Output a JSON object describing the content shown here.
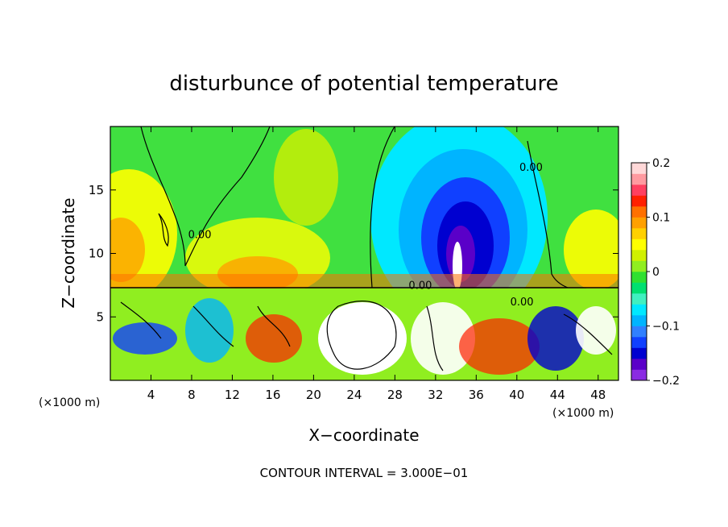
{
  "chart_data": {
    "type": "heatmap",
    "title": "disturbunce of potential temperature",
    "xlabel": "X−coordinate",
    "ylabel": "Z−coordinate",
    "x_unit_left": "(×1000 m)",
    "x_unit_right": "(×1000 m)",
    "footer": "CONTOUR INTERVAL = 3.000E−01",
    "x_range": [
      0,
      50
    ],
    "y_range": [
      0,
      20
    ],
    "x_ticks": [
      4,
      8,
      12,
      16,
      20,
      24,
      28,
      32,
      36,
      40,
      44,
      48
    ],
    "x_tick_labels": [
      "4",
      "8",
      "12",
      "16",
      "20",
      "24",
      "28",
      "32",
      "36",
      "40",
      "44",
      "48"
    ],
    "y_ticks": [
      5,
      10,
      15
    ],
    "y_tick_labels": [
      "5",
      "10",
      "15"
    ],
    "colorbar": {
      "range": [
        -0.2,
        0.2
      ],
      "tick_values": [
        0.2,
        0.1,
        0,
        -0.1,
        -0.2
      ],
      "tick_labels": [
        "0.2",
        "0.1",
        "0",
        "−0.1",
        "−0.2"
      ],
      "colors": [
        "#8a2be2",
        "#5a00c8",
        "#0000d0",
        "#1040ff",
        "#3080ff",
        "#00b4ff",
        "#00e8ff",
        "#40f0c0",
        "#00e070",
        "#30e030",
        "#90ee20",
        "#d0f000",
        "#ffff00",
        "#ffd000",
        "#ffa000",
        "#ff7000",
        "#ff2000",
        "#ff4060",
        "#ff9aa0",
        "#ffd8d8"
      ]
    },
    "contour_labels": [
      {
        "text": "0.00",
        "x": 8.8,
        "z": 11.2
      },
      {
        "text": "0.00",
        "x": 41.4,
        "z": 16.5
      },
      {
        "text": "0.00",
        "x": 30.5,
        "z": 7.2
      },
      {
        "text": "0.00",
        "x": 40.5,
        "z": 5.9
      }
    ]
  }
}
